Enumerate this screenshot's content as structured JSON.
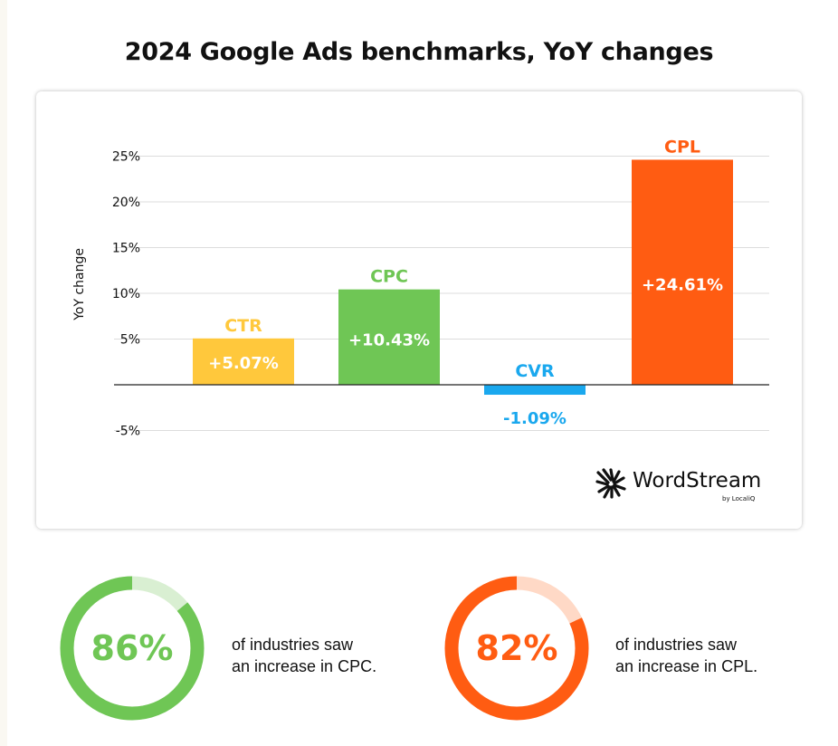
{
  "title": "2024 Google Ads benchmarks, YoY changes",
  "colors": {
    "ctr": "#ffc83c",
    "cpc": "#6fc655",
    "cvr": "#1aa8ee",
    "cpl": "#ff5c12",
    "cpc_light": "#d9efd2",
    "cpl_light": "#ffd9c6"
  },
  "chart_data": {
    "type": "bar",
    "title": "2024 Google Ads benchmarks, YoY changes",
    "ylabel": "YoY change",
    "xlabel": "",
    "ylim": [
      -5,
      25
    ],
    "yticks": [
      "-5%",
      "5%",
      "10%",
      "15%",
      "20%",
      "25%"
    ],
    "grid": true,
    "categories": [
      "CTR",
      "CPC",
      "CVR",
      "CPL"
    ],
    "values": [
      5.07,
      10.43,
      -1.09,
      24.61
    ],
    "value_labels": [
      "+5.07%",
      "+10.43%",
      "-1.09%",
      "+24.61%"
    ]
  },
  "brand": {
    "icon": "wordstream-logo-icon",
    "name": "WordStream",
    "sub": "by LocaliQ"
  },
  "stats": [
    {
      "percent": 86,
      "label": "86%",
      "line1": "of industries saw",
      "line2": "an increase in CPC."
    },
    {
      "percent": 82,
      "label": "82%",
      "line1": "of industries saw",
      "line2": "an increase in CPL."
    }
  ]
}
